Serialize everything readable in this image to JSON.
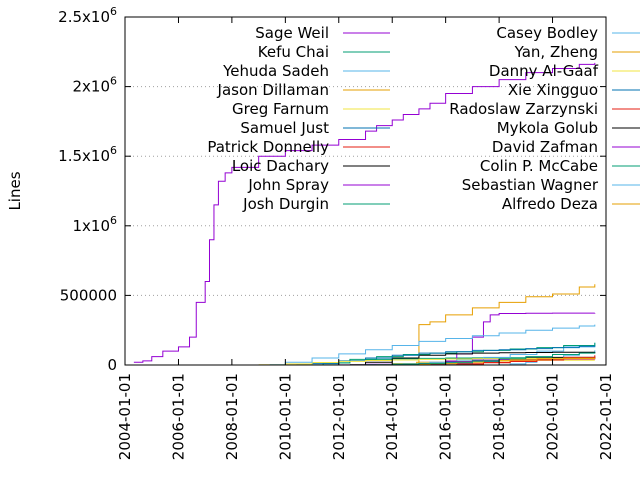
{
  "chart_data": {
    "type": "line",
    "title": "",
    "xlabel": "",
    "ylabel": "Lines",
    "x_scale": "date",
    "xlim": [
      "2004-01-01",
      "2022-01-01"
    ],
    "ylim": [
      0,
      2500000
    ],
    "grid": "horizontal dotted at labeled y ticks",
    "legend_position": "top, two columns",
    "x_ticks": [
      "2004-01-01",
      "2006-01-01",
      "2008-01-01",
      "2010-01-01",
      "2012-01-01",
      "2014-01-01",
      "2016-01-01",
      "2018-01-01",
      "2020-01-01",
      "2022-01-01"
    ],
    "y_ticks": [
      {
        "value": 0,
        "base": "0",
        "exp": ""
      },
      {
        "value": 500000,
        "base": "500000",
        "exp": ""
      },
      {
        "value": 1000000,
        "base": "1x10",
        "exp": "6"
      },
      {
        "value": 1500000,
        "base": "1.5x10",
        "exp": "6"
      },
      {
        "value": 2000000,
        "base": "2x10",
        "exp": "6"
      },
      {
        "value": 2500000,
        "base": "2.5x10",
        "exp": "6"
      }
    ],
    "series": [
      {
        "name": "Sage Weil",
        "color": "#9400d3",
        "x": [
          "2004-05-01",
          "2004-09-01",
          "2005-01-01",
          "2005-06-01",
          "2006-01-01",
          "2006-06-01",
          "2006-09-01",
          "2007-01-01",
          "2007-03-01",
          "2007-05-01",
          "2007-07-01",
          "2007-10-01",
          "2008-01-01",
          "2009-01-01",
          "2010-01-01",
          "2011-01-01",
          "2012-01-01",
          "2013-01-01",
          "2013-06-01",
          "2014-01-01",
          "2014-06-01",
          "2015-01-01",
          "2015-06-01",
          "2016-01-01",
          "2017-01-01",
          "2018-01-01",
          "2019-01-01",
          "2020-01-01",
          "2021-01-01",
          "2021-08-01"
        ],
        "y": [
          20000,
          30000,
          60000,
          100000,
          130000,
          200000,
          450000,
          600000,
          900000,
          1150000,
          1320000,
          1380000,
          1420000,
          1500000,
          1540000,
          1580000,
          1620000,
          1680000,
          1720000,
          1760000,
          1800000,
          1840000,
          1880000,
          1950000,
          2000000,
          2050000,
          2100000,
          2130000,
          2160000,
          2170000
        ]
      },
      {
        "name": "Kefu Chai",
        "color": "#009e73",
        "x": [
          "2013-01-01",
          "2014-01-01",
          "2015-01-01",
          "2016-01-01",
          "2017-01-01",
          "2018-01-01",
          "2019-01-01",
          "2020-01-01",
          "2021-01-01",
          "2021-08-01"
        ],
        "y": [
          2000,
          6000,
          12000,
          20000,
          30000,
          45000,
          60000,
          75000,
          85000,
          90000
        ]
      },
      {
        "name": "Yehuda Sadeh",
        "color": "#56b4e9",
        "x": [
          "2009-06-01",
          "2010-01-01",
          "2011-01-01",
          "2012-01-01",
          "2013-01-01",
          "2014-01-01",
          "2015-01-01",
          "2016-01-01",
          "2017-01-01",
          "2018-01-01",
          "2019-01-01",
          "2020-01-01",
          "2021-01-01",
          "2021-08-01"
        ],
        "y": [
          2000,
          20000,
          50000,
          80000,
          110000,
          140000,
          170000,
          190000,
          210000,
          230000,
          250000,
          265000,
          280000,
          290000
        ]
      },
      {
        "name": "Jason Dillaman",
        "color": "#e69f00",
        "x": [
          "2013-06-01",
          "2014-06-01",
          "2015-06-01",
          "2016-06-01",
          "2017-06-01",
          "2018-06-01",
          "2019-06-01",
          "2020-06-01",
          "2021-08-01"
        ],
        "y": [
          1000,
          4000,
          10000,
          20000,
          30000,
          38000,
          44000,
          48000,
          50000
        ]
      },
      {
        "name": "Greg Farnum",
        "color": "#f0e442",
        "x": [
          "2009-01-01",
          "2010-01-01",
          "2011-01-01",
          "2012-01-01",
          "2013-01-01",
          "2014-01-01",
          "2015-01-01",
          "2016-01-01",
          "2017-01-01",
          "2018-01-01",
          "2019-01-01",
          "2020-01-01",
          "2021-08-01"
        ],
        "y": [
          2000,
          8000,
          18000,
          26000,
          32000,
          36000,
          40000,
          43000,
          45000,
          46000,
          47000,
          48000,
          48000
        ]
      },
      {
        "name": "Samuel Just",
        "color": "#0072b2",
        "x": [
          "2010-06-01",
          "2011-01-01",
          "2012-01-01",
          "2013-01-01",
          "2014-01-01",
          "2015-01-01",
          "2016-01-01",
          "2017-01-01",
          "2018-01-01",
          "2019-01-01",
          "2020-01-01",
          "2021-01-01",
          "2021-08-01"
        ],
        "y": [
          1000,
          10000,
          30000,
          50000,
          70000,
          85000,
          95000,
          105000,
          110000,
          118000,
          125000,
          135000,
          140000
        ]
      },
      {
        "name": "Patrick Donnelly",
        "color": "#e51e10",
        "x": [
          "2015-06-01",
          "2016-06-01",
          "2017-06-01",
          "2018-06-01",
          "2019-06-01",
          "2020-06-01",
          "2021-08-01"
        ],
        "y": [
          1000,
          8000,
          18000,
          28000,
          36000,
          45000,
          52000
        ]
      },
      {
        "name": "Loic Dachary",
        "color": "#000000",
        "x": [
          "2012-06-01",
          "2013-01-01",
          "2014-01-01",
          "2015-01-01",
          "2016-01-01",
          "2017-01-01",
          "2018-01-01",
          "2019-01-01",
          "2020-01-01",
          "2021-08-01"
        ],
        "y": [
          2000,
          20000,
          50000,
          70000,
          80000,
          85000,
          88000,
          90000,
          92000,
          93000
        ]
      },
      {
        "name": "John Spray",
        "color": "#9400d3",
        "x": [
          "2014-01-01",
          "2015-01-01",
          "2016-01-01",
          "2017-01-01",
          "2018-01-01",
          "2019-01-01",
          "2020-01-01",
          "2021-08-01"
        ],
        "y": [
          2000,
          10000,
          25000,
          35000,
          40000,
          42000,
          43000,
          43000
        ]
      },
      {
        "name": "Josh Durgin",
        "color": "#009e73",
        "x": [
          "2010-06-01",
          "2011-06-01",
          "2012-06-01",
          "2013-06-01",
          "2014-06-01",
          "2015-06-01",
          "2016-06-01",
          "2017-06-01",
          "2018-06-01",
          "2019-06-01",
          "2020-06-01",
          "2021-08-01"
        ],
        "y": [
          1000,
          15000,
          40000,
          60000,
          75000,
          85000,
          95000,
          105000,
          115000,
          125000,
          140000,
          160000
        ]
      },
      {
        "name": "Casey Bodley",
        "color": "#56b4e9",
        "x": [
          "2013-06-01",
          "2014-06-01",
          "2015-06-01",
          "2016-06-01",
          "2017-06-01",
          "2018-06-01",
          "2019-06-01",
          "2020-06-01",
          "2021-08-01"
        ],
        "y": [
          1000,
          8000,
          20000,
          35000,
          55000,
          75000,
          100000,
          130000,
          160000
        ]
      },
      {
        "name": "Yan, Zheng",
        "color": "#e69f00",
        "x": [
          "2014-01-01",
          "2014-12-01",
          "2015-01-01",
          "2015-06-01",
          "2016-01-01",
          "2017-01-01",
          "2018-01-01",
          "2019-01-01",
          "2020-01-01",
          "2021-01-01",
          "2021-08-01"
        ],
        "y": [
          5000,
          20000,
          290000,
          310000,
          360000,
          410000,
          450000,
          490000,
          510000,
          560000,
          580000
        ]
      },
      {
        "name": "Danny Al-Gaaf",
        "color": "#f0e442",
        "x": [
          "2013-01-01",
          "2014-01-01",
          "2015-01-01",
          "2016-01-01",
          "2017-01-01",
          "2018-01-01",
          "2019-01-01",
          "2020-01-01",
          "2021-08-01"
        ],
        "y": [
          1000,
          10000,
          20000,
          26000,
          30000,
          32000,
          33000,
          34000,
          34000
        ]
      },
      {
        "name": "Xie Xingguo",
        "color": "#0072b2",
        "x": [
          "2015-01-01",
          "2016-01-01",
          "2017-01-01",
          "2018-01-01",
          "2019-01-01",
          "2020-01-01",
          "2021-08-01"
        ],
        "y": [
          1000,
          10000,
          25000,
          35000,
          42000,
          46000,
          48000
        ]
      },
      {
        "name": "Radoslaw Zarzynski",
        "color": "#e51e10",
        "x": [
          "2015-06-01",
          "2016-06-01",
          "2017-06-01",
          "2018-06-01",
          "2019-06-01",
          "2020-06-01",
          "2021-08-01"
        ],
        "y": [
          1000,
          8000,
          16000,
          25000,
          40000,
          55000,
          70000
        ]
      },
      {
        "name": "Mykola Golub",
        "color": "#000000",
        "x": [
          "2014-01-01",
          "2015-01-01",
          "2016-01-01",
          "2017-01-01",
          "2018-01-01",
          "2019-01-01",
          "2020-01-01",
          "2021-08-01"
        ],
        "y": [
          1000,
          8000,
          20000,
          32000,
          42000,
          50000,
          55000,
          60000
        ]
      },
      {
        "name": "David Zafman",
        "color": "#9400d3",
        "x": [
          "2012-01-01",
          "2013-01-01",
          "2014-01-01",
          "2015-01-01",
          "2016-01-01",
          "2016-06-01",
          "2017-01-01",
          "2017-06-01",
          "2017-09-01",
          "2018-01-01",
          "2019-01-01",
          "2020-01-01",
          "2021-08-01"
        ],
        "y": [
          1000,
          5000,
          10000,
          20000,
          30000,
          80000,
          200000,
          310000,
          360000,
          370000,
          372000,
          373000,
          374000
        ]
      },
      {
        "name": "Colin P. McCabe",
        "color": "#009e73",
        "x": [
          "2011-06-01",
          "2012-01-01",
          "2012-06-01",
          "2013-01-01",
          "2014-01-01",
          "2015-01-01",
          "2016-01-01",
          "2017-01-01",
          "2018-01-01",
          "2019-01-01",
          "2020-01-01",
          "2021-08-01"
        ],
        "y": [
          1000,
          15000,
          30000,
          40000,
          45000,
          48000,
          50000,
          51000,
          52000,
          52000,
          52000,
          52000
        ]
      },
      {
        "name": "Sebastian Wagner",
        "color": "#56b4e9",
        "x": [
          "2018-01-01",
          "2018-06-01",
          "2019-01-01",
          "2019-06-01",
          "2020-01-01",
          "2020-06-01",
          "2021-01-01",
          "2021-08-01"
        ],
        "y": [
          1000,
          8000,
          20000,
          35000,
          50000,
          70000,
          90000,
          105000
        ]
      },
      {
        "name": "Alfredo Deza",
        "color": "#e69f00",
        "x": [
          "2016-06-01",
          "2017-01-01",
          "2017-06-01",
          "2018-01-01",
          "2018-06-01",
          "2019-01-01",
          "2020-01-01",
          "2021-08-01"
        ],
        "y": [
          1000,
          8000,
          20000,
          30000,
          36000,
          40000,
          42000,
          42000
        ]
      }
    ]
  }
}
